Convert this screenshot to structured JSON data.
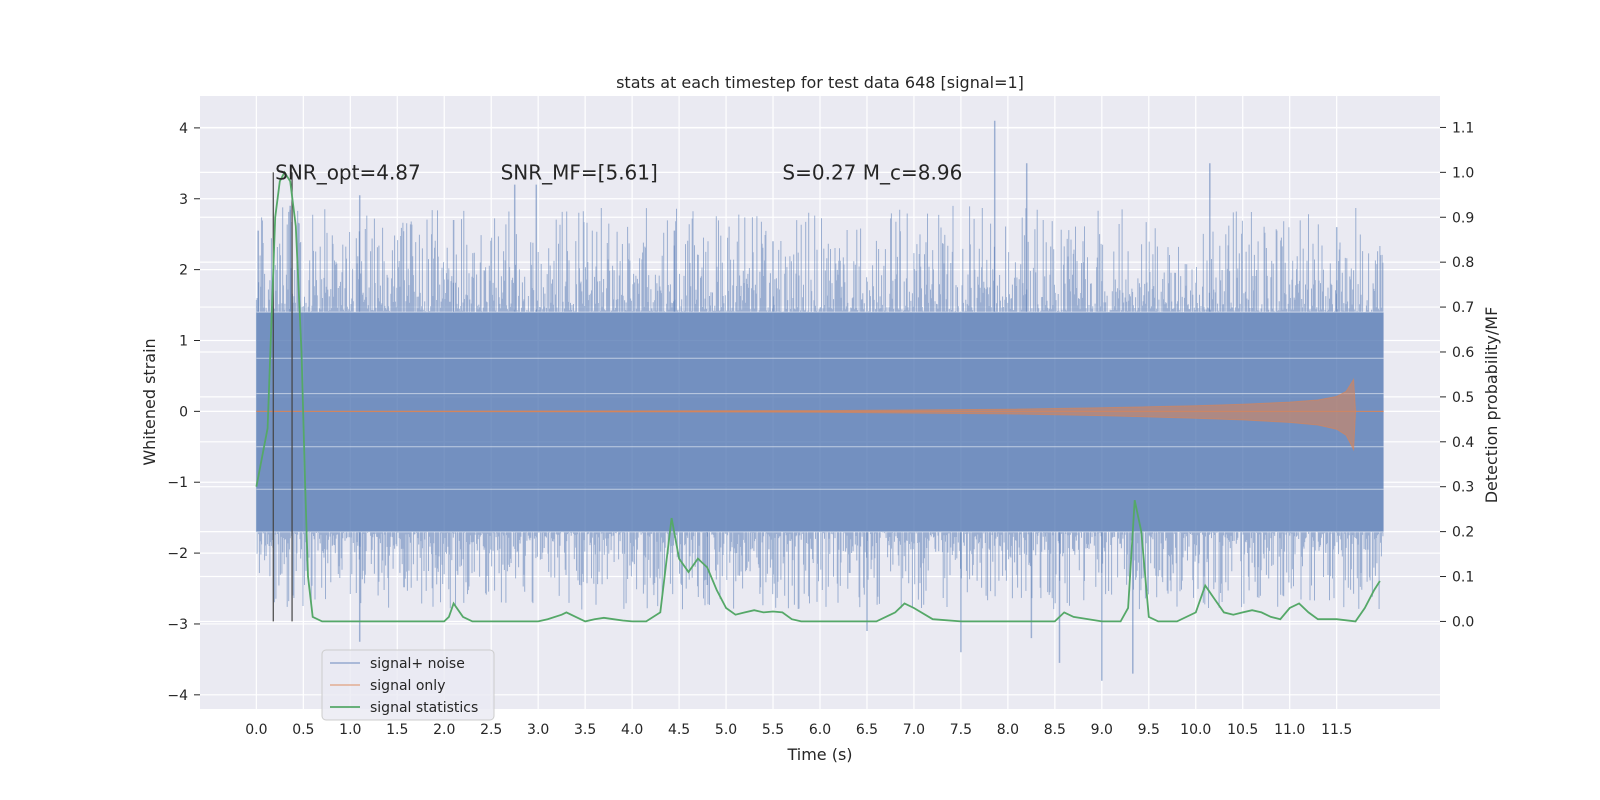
{
  "chart_data": {
    "type": "line",
    "title": "stats at each timestep for test data 648 [signal=1]",
    "xlabel": "Time (s)",
    "ylabel": "Whitened strain",
    "y2label": "Detection probability/MF",
    "xlim": [
      -0.6,
      12.6
    ],
    "ylim": [
      -4.2,
      4.45
    ],
    "y2lim": [
      -0.195,
      1.17
    ],
    "x_ticks": [
      0.0,
      0.5,
      1.0,
      1.5,
      2.0,
      2.5,
      3.0,
      3.5,
      4.0,
      4.5,
      5.0,
      5.5,
      6.0,
      6.5,
      7.0,
      7.5,
      8.0,
      8.5,
      9.0,
      9.5,
      10.0,
      10.5,
      11.0,
      11.5
    ],
    "x_tick_labels": [
      "0.0",
      "0.5",
      "1.0",
      "1.5",
      "2.0",
      "2.5",
      "3.0",
      "3.5",
      "4.0",
      "4.5",
      "5.0",
      "5.5",
      "6.0",
      "6.5",
      "7.0",
      "7.5",
      "8.0",
      "8.5",
      "9.0",
      "9.5",
      "10.0",
      "10.5",
      "11.0",
      "11.5"
    ],
    "y_ticks": [
      -4,
      -3,
      -2,
      -1,
      0,
      1,
      2,
      3,
      4
    ],
    "y_tick_labels": [
      "−4",
      "−3",
      "−2",
      "−1",
      "0",
      "1",
      "2",
      "3",
      "4"
    ],
    "y2_ticks": [
      0.0,
      0.1,
      0.2,
      0.3,
      0.4,
      0.5,
      0.6,
      0.7,
      0.8,
      0.9,
      1.0,
      1.1
    ],
    "y2_tick_labels": [
      "0.0",
      "0.1",
      "0.2",
      "0.3",
      "0.4",
      "0.5",
      "0.6",
      "0.7",
      "0.8",
      "0.9",
      "1.0",
      "1.1"
    ],
    "grid": true,
    "legend_position": "lower-left",
    "series": [
      {
        "name": "signal+ noise",
        "color": "#4c72b0",
        "axis": "left",
        "noise_x_range": [
          0.0,
          12.0
        ],
        "noise_band": [
          -1.7,
          1.4
        ],
        "noise_peaks_max": 4.1,
        "noise_peaks_min": -3.8,
        "noise_spikes": [
          {
            "x": 0.02,
            "y": 2.55
          },
          {
            "x": 0.36,
            "y": 2.9
          },
          {
            "x": 1.1,
            "y": -3.25
          },
          {
            "x": 1.1,
            "y": 3.05
          },
          {
            "x": 2.1,
            "y": 2.7
          },
          {
            "x": 2.75,
            "y": 3.2
          },
          {
            "x": 2.98,
            "y": 3.2
          },
          {
            "x": 4.45,
            "y": 2.55
          },
          {
            "x": 4.8,
            "y": -2.45
          },
          {
            "x": 5.5,
            "y": 2.4
          },
          {
            "x": 6.5,
            "y": -3.1
          },
          {
            "x": 7.5,
            "y": -3.4
          },
          {
            "x": 7.86,
            "y": 4.1
          },
          {
            "x": 8.2,
            "y": 3.5
          },
          {
            "x": 8.25,
            "y": -3.2
          },
          {
            "x": 8.55,
            "y": -3.55
          },
          {
            "x": 9.0,
            "y": -3.8
          },
          {
            "x": 9.33,
            "y": -3.7
          },
          {
            "x": 10.15,
            "y": 3.5
          },
          {
            "x": 11.5,
            "y": 2.6
          }
        ]
      },
      {
        "name": "signal only",
        "color": "#dd8452",
        "axis": "left",
        "x": [
          0.0,
          6.0,
          8.0,
          9.0,
          10.0,
          10.5,
          11.0,
          11.3,
          11.5,
          11.6,
          11.68,
          11.7,
          11.72,
          12.0
        ],
        "amplitude": [
          0.0,
          0.01,
          0.03,
          0.05,
          0.08,
          0.1,
          0.13,
          0.16,
          0.21,
          0.28,
          0.45,
          0.0,
          0.0,
          0.0
        ]
      },
      {
        "name": "signal statistics",
        "color": "#55a868",
        "axis": "right",
        "x": [
          0.0,
          0.12,
          0.2,
          0.25,
          0.3,
          0.36,
          0.42,
          0.48,
          0.52,
          0.55,
          0.6,
          0.7,
          1.0,
          1.5,
          2.0,
          2.05,
          2.1,
          2.2,
          2.3,
          2.5,
          3.0,
          3.1,
          3.25,
          3.3,
          3.4,
          3.5,
          3.6,
          3.7,
          3.8,
          3.9,
          4.0,
          4.15,
          4.3,
          4.42,
          4.5,
          4.6,
          4.7,
          4.8,
          4.9,
          5.0,
          5.1,
          5.2,
          5.3,
          5.4,
          5.5,
          5.6,
          5.7,
          5.8,
          6.0,
          6.5,
          6.6,
          6.8,
          6.9,
          7.0,
          7.2,
          7.5,
          8.0,
          8.5,
          8.55,
          8.6,
          8.7,
          9.0,
          9.2,
          9.28,
          9.35,
          9.42,
          9.5,
          9.6,
          9.8,
          10.0,
          10.1,
          10.2,
          10.3,
          10.4,
          10.5,
          10.6,
          10.7,
          10.8,
          10.9,
          11.0,
          11.1,
          11.2,
          11.3,
          11.5,
          11.7,
          11.8,
          11.9,
          11.96
        ],
        "y": [
          0.3,
          0.43,
          0.9,
          0.98,
          1.0,
          0.98,
          0.88,
          0.6,
          0.3,
          0.1,
          0.01,
          0.0,
          0.0,
          0.0,
          0.0,
          0.01,
          0.04,
          0.01,
          0.0,
          0.0,
          0.0,
          0.005,
          0.015,
          0.02,
          0.01,
          0.0,
          0.005,
          0.008,
          0.005,
          0.002,
          0.0,
          0.0,
          0.02,
          0.23,
          0.14,
          0.11,
          0.14,
          0.12,
          0.07,
          0.03,
          0.015,
          0.02,
          0.025,
          0.02,
          0.022,
          0.02,
          0.005,
          0.0,
          0.0,
          0.0,
          0.0,
          0.02,
          0.04,
          0.03,
          0.005,
          0.0,
          0.0,
          0.0,
          0.01,
          0.02,
          0.01,
          0.0,
          0.0,
          0.03,
          0.27,
          0.2,
          0.01,
          0.0,
          0.0,
          0.02,
          0.08,
          0.05,
          0.02,
          0.015,
          0.02,
          0.025,
          0.02,
          0.01,
          0.005,
          0.03,
          0.04,
          0.02,
          0.005,
          0.005,
          0.0,
          0.03,
          0.07,
          0.09
        ]
      }
    ],
    "vlines": [
      0.18,
      0.38
    ],
    "annotations": [
      {
        "text": "SNR_opt=4.87",
        "x": 0.2
      },
      {
        "text": "SNR_MF=[5.61]",
        "x": 2.6
      },
      {
        "text": "S=0.27   M_c=8.96",
        "x": 5.6
      }
    ]
  }
}
